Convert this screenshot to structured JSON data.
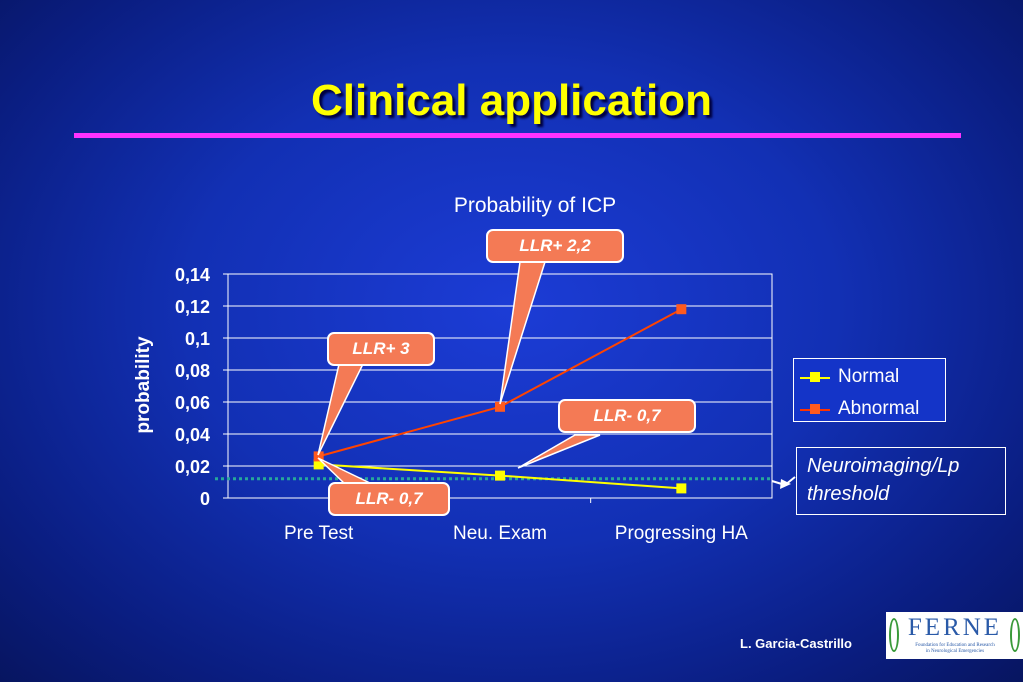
{
  "slide": {
    "title": "Clinical application",
    "author": "L. Garcia-Castrillo"
  },
  "colors": {
    "title": "#ffff00",
    "rule": "#ff33ff",
    "normal": "#ffff00",
    "abnormal": "#ff4400",
    "abnormal_marker": "#ff5a1e",
    "threshold": "#26a89a",
    "callout_fill": "#f47a55"
  },
  "callouts": {
    "llr_pos_3": "LLR+ 3",
    "llr_pos_2_2": "LLR+ 2,2",
    "llr_neg_07_upper": "LLR- 0,7",
    "llr_neg_07_lower": "LLR- 0,7"
  },
  "threshold_note": {
    "line1": "Neuroimaging/Lp",
    "line2": "threshold"
  },
  "logo": {
    "text": "FERNE",
    "subtitle_line1": "Foundation for Education and Research",
    "subtitle_line2": "in Neurological Emergencies"
  },
  "chart_data": {
    "type": "line",
    "title": "Probability of ICP",
    "xlabel": "",
    "ylabel": "probability",
    "categories": [
      "Pre Test",
      "Neu. Exam",
      "Progressing HA"
    ],
    "ylim": [
      0,
      0.14
    ],
    "yticks": [
      "0",
      "0,02",
      "0,04",
      "0,06",
      "0,08",
      "0,1",
      "0,12",
      "0,14"
    ],
    "grid": true,
    "legend_position": "right",
    "series": [
      {
        "name": "Normal",
        "values": [
          0.021,
          0.014,
          0.006
        ]
      },
      {
        "name": "Abnormal",
        "values": [
          0.026,
          0.057,
          0.118
        ]
      }
    ],
    "threshold_value": 0.012
  }
}
